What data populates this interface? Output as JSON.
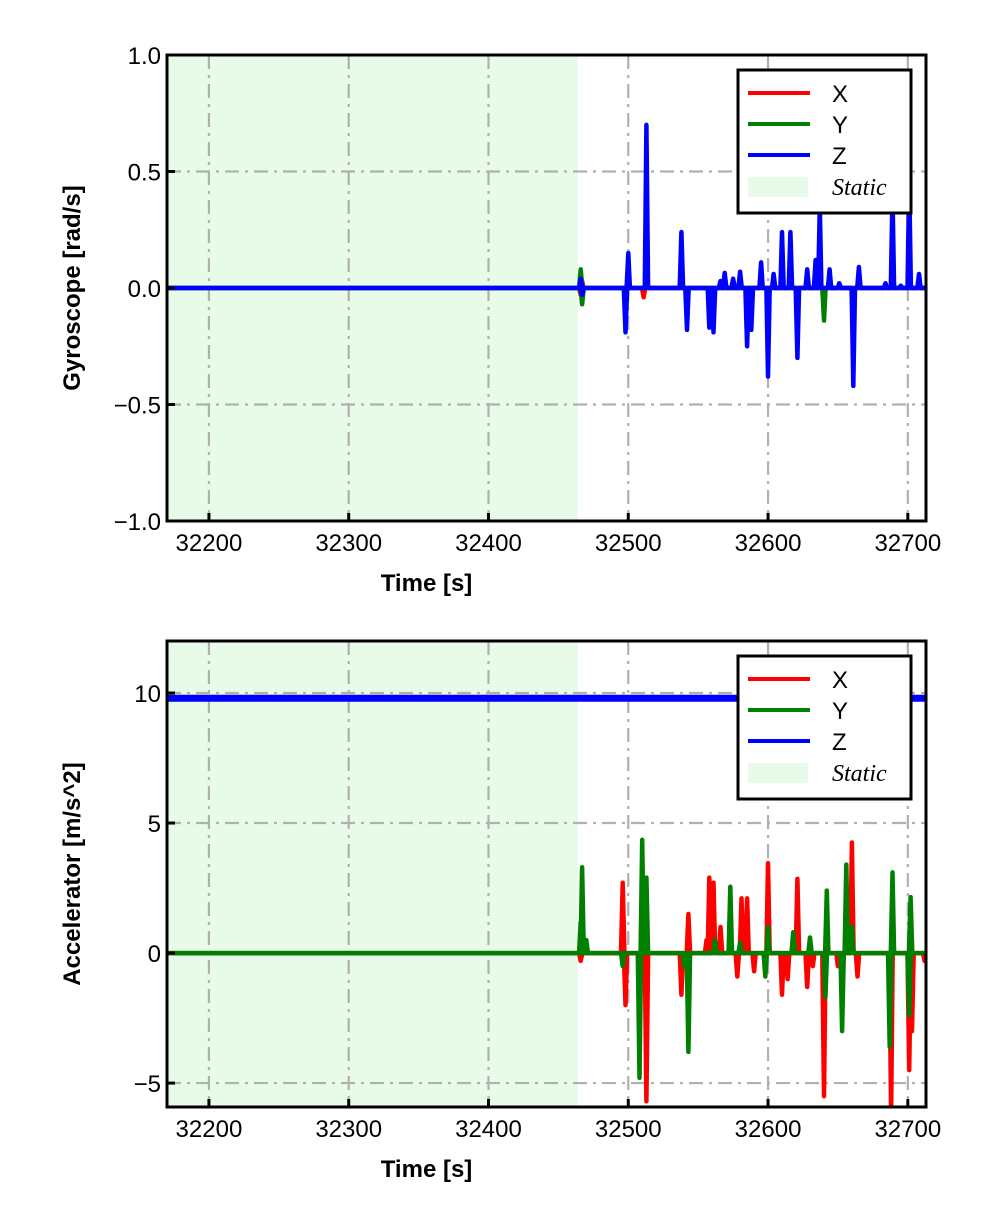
{
  "chart_data": [
    {
      "type": "line",
      "title": "",
      "xlabel": "Time [s]",
      "ylabel": "Gyroscope [rad/s]",
      "xlim": [
        32170,
        32713
      ],
      "ylim": [
        -1.0,
        1.0
      ],
      "xticks": [
        32200,
        32300,
        32400,
        32500,
        32600,
        32700
      ],
      "xtick_labels": [
        "32200",
        "32300",
        "32400",
        "32500",
        "32600",
        "32700"
      ],
      "yticks": [
        1.0,
        0.5,
        0.0,
        -0.5,
        -1.0
      ],
      "ytick_labels": [
        "1.0",
        "0.5",
        "0.0",
        "−0.5",
        "−1.0"
      ],
      "grid": true,
      "legend_position": "top-right",
      "static_region": {
        "label": "Static",
        "x_start": 32170,
        "x_end": 32464,
        "color": "#e8fbe8"
      },
      "series": [
        {
          "name": "X",
          "color": "#ff0000",
          "baseline": 0,
          "points": [
            [
              32466,
              -0.03
            ],
            [
              32467,
              0.03
            ],
            [
              32511,
              -0.04
            ]
          ]
        },
        {
          "name": "Y",
          "color": "#008000",
          "baseline": 0,
          "points": [
            [
              32466,
              0.08
            ],
            [
              32467,
              -0.07
            ],
            [
              32640,
              -0.14
            ]
          ]
        },
        {
          "name": "Z",
          "color": "#0000ff",
          "baseline": 0,
          "points": [
            [
              32466,
              0.04
            ],
            [
              32467,
              -0.03
            ],
            [
              32498,
              -0.19
            ],
            [
              32500,
              0.15
            ],
            [
              32513,
              0.7
            ],
            [
              32538,
              0.24
            ],
            [
              32542,
              -0.18
            ],
            [
              32558,
              -0.17
            ],
            [
              32561,
              -0.19
            ],
            [
              32566,
              0.03
            ],
            [
              32569,
              0.065
            ],
            [
              32575,
              0.04
            ],
            [
              32580,
              0.07
            ],
            [
              32585,
              -0.25
            ],
            [
              32588,
              -0.18
            ],
            [
              32595,
              0.11
            ],
            [
              32600,
              -0.38
            ],
            [
              32604,
              0.06
            ],
            [
              32610,
              0.24
            ],
            [
              32616,
              0.24
            ],
            [
              32621,
              -0.3
            ],
            [
              32628,
              0.08
            ],
            [
              32634,
              0.12
            ],
            [
              32637,
              0.35
            ],
            [
              32644,
              0.08
            ],
            [
              32651,
              0.02
            ],
            [
              32661,
              -0.42
            ],
            [
              32665,
              0.09
            ],
            [
              32684,
              0.02
            ],
            [
              32689,
              0.4
            ],
            [
              32695,
              0.01
            ],
            [
              32701,
              0.46
            ],
            [
              32708,
              0.06
            ]
          ]
        }
      ]
    },
    {
      "type": "line",
      "title": "",
      "xlabel": "Time [s]",
      "ylabel": "Accelerator [m/s^2]",
      "xlim": [
        32170,
        32713
      ],
      "ylim": [
        -5.92,
        12.0
      ],
      "xticks": [
        32200,
        32300,
        32400,
        32500,
        32600,
        32700
      ],
      "xtick_labels": [
        "32200",
        "32300",
        "32400",
        "32500",
        "32600",
        "32700"
      ],
      "yticks": [
        10,
        5,
        0,
        -5
      ],
      "ytick_labels": [
        "10",
        "5",
        "0",
        "−5"
      ],
      "grid": true,
      "legend_position": "top-right",
      "static_region": {
        "label": "Static",
        "x_start": 32170,
        "x_end": 32464,
        "color": "#e8fbe8"
      },
      "series": [
        {
          "name": "X",
          "color": "#ff0000",
          "baseline": 0,
          "points": [
            [
              32466,
              -0.3
            ],
            [
              32496,
              2.7
            ],
            [
              32498,
              -2.0
            ],
            [
              32513,
              -5.7
            ],
            [
              32538,
              -1.6
            ],
            [
              32543,
              1.5
            ],
            [
              32556,
              0.5
            ],
            [
              32558,
              2.9
            ],
            [
              32561,
              2.7
            ],
            [
              32566,
              1.0
            ],
            [
              32578,
              -0.9
            ],
            [
              32581,
              2.1
            ],
            [
              32585,
              2.1
            ],
            [
              32590,
              -0.7
            ],
            [
              32600,
              3.45
            ],
            [
              32610,
              -1.6
            ],
            [
              32614,
              -1.0
            ],
            [
              32621,
              2.85
            ],
            [
              32628,
              -1.3
            ],
            [
              32632,
              -0.5
            ],
            [
              32640,
              -5.5
            ],
            [
              32650,
              -0.5
            ],
            [
              32660,
              4.25
            ],
            [
              32664,
              -0.9
            ],
            [
              32688,
              -6.2
            ],
            [
              32701,
              -4.5
            ],
            [
              32703,
              -3.0
            ],
            [
              32712,
              -0.3
            ]
          ]
        },
        {
          "name": "Y",
          "color": "#008000",
          "baseline": 0,
          "points": [
            [
              32466,
              1.2
            ],
            [
              32467,
              3.3
            ],
            [
              32470,
              0.5
            ],
            [
              32496,
              -0.5
            ],
            [
              32508,
              -4.8
            ],
            [
              32510,
              4.35
            ],
            [
              32513,
              2.9
            ],
            [
              32540,
              -0.5
            ],
            [
              32543,
              -3.8
            ],
            [
              32562,
              0.5
            ],
            [
              32573,
              2.55
            ],
            [
              32580,
              0.4
            ],
            [
              32598,
              -0.9
            ],
            [
              32600,
              1.0
            ],
            [
              32618,
              0.8
            ],
            [
              32630,
              0.6
            ],
            [
              32641,
              -1.7
            ],
            [
              32642,
              2.4
            ],
            [
              32653,
              -3.0
            ],
            [
              32656,
              3.4
            ],
            [
              32660,
              1.0
            ],
            [
              32687,
              -3.6
            ],
            [
              32689,
              3.1
            ],
            [
              32701,
              -2.4
            ],
            [
              32702,
              2.15
            ]
          ]
        },
        {
          "name": "Z",
          "color": "#0000ff",
          "baseline": 9.8,
          "points": []
        }
      ]
    }
  ]
}
